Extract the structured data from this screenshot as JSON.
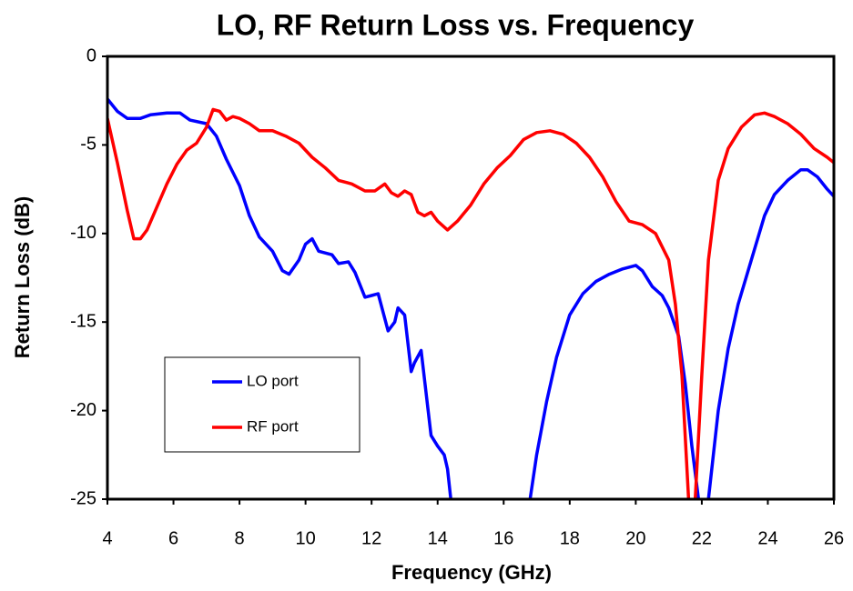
{
  "chart_data": {
    "type": "line",
    "title": "LO, RF Return Loss vs. Frequency",
    "x_label": "Frequency (GHz)",
    "y_label": "Return Loss (dB)",
    "xlim": [
      4,
      26
    ],
    "xticks": [
      4,
      6,
      8,
      10,
      12,
      14,
      16,
      18,
      20,
      22,
      24,
      26
    ],
    "ylim": [
      -25,
      0
    ],
    "yticks": [
      0,
      -5,
      -10,
      -15,
      -20,
      -25
    ],
    "grid": false,
    "legend": "lower-left",
    "series": [
      {
        "name": "LO port",
        "color": "#0000ff",
        "x": [
          4.0,
          4.3,
          4.6,
          5.0,
          5.3,
          5.8,
          6.2,
          6.5,
          7.0,
          7.3,
          7.6,
          8.0,
          8.3,
          8.6,
          9.0,
          9.3,
          9.5,
          9.8,
          10.0,
          10.2,
          10.4,
          10.8,
          11.0,
          11.3,
          11.5,
          11.8,
          12.0,
          12.2,
          12.5,
          12.7,
          12.8,
          13.0,
          13.2,
          13.3,
          13.5,
          13.8,
          14.0,
          14.2,
          14.3,
          14.4,
          15.6,
          16.8,
          17.0,
          17.3,
          17.6,
          18.0,
          18.4,
          18.8,
          19.2,
          19.6,
          20.0,
          20.2,
          20.5,
          20.8,
          21.0,
          21.3,
          21.5,
          21.7,
          21.9,
          22.05,
          22.2,
          22.5,
          22.8,
          23.1,
          23.5,
          23.9,
          24.2,
          24.6,
          25.0,
          25.2,
          25.5,
          25.8,
          26.0
        ],
        "values": [
          -2.4,
          -3.1,
          -3.5,
          -3.5,
          -3.3,
          -3.2,
          -3.2,
          -3.6,
          -3.8,
          -4.5,
          -5.8,
          -7.3,
          -9.0,
          -10.2,
          -11.0,
          -12.1,
          -12.3,
          -11.5,
          -10.6,
          -10.3,
          -11.0,
          -11.2,
          -11.7,
          -11.6,
          -12.2,
          -13.6,
          -13.5,
          -13.4,
          -15.5,
          -15.0,
          -14.2,
          -14.6,
          -17.8,
          -17.3,
          -16.6,
          -21.4,
          -22.0,
          -22.5,
          -23.3,
          -25,
          null,
          -25,
          -22.5,
          -19.5,
          -17.0,
          -14.6,
          -13.4,
          -12.7,
          -12.3,
          -12.0,
          -11.8,
          -12.1,
          -13.0,
          -13.5,
          -14.2,
          -15.8,
          -18.5,
          -22.0,
          -25,
          null,
          -25,
          -20,
          -16.5,
          -14,
          -11.5,
          -9,
          -7.8,
          -7.0,
          -6.4,
          -6.4,
          -6.8,
          -7.5,
          -7.9
        ]
      },
      {
        "name": "RF port",
        "color": "#ff0000",
        "x": [
          4.0,
          4.3,
          4.6,
          4.8,
          5.0,
          5.2,
          5.5,
          5.8,
          6.1,
          6.4,
          6.7,
          7.0,
          7.2,
          7.4,
          7.6,
          7.8,
          8.0,
          8.3,
          8.6,
          9.0,
          9.4,
          9.8,
          10.2,
          10.6,
          11.0,
          11.4,
          11.8,
          12.1,
          12.4,
          12.6,
          12.8,
          13.0,
          13.2,
          13.4,
          13.6,
          13.8,
          14.0,
          14.3,
          14.6,
          15.0,
          15.4,
          15.8,
          16.2,
          16.6,
          17.0,
          17.4,
          17.8,
          18.2,
          18.6,
          19.0,
          19.4,
          19.8,
          20.2,
          20.6,
          21.0,
          21.2,
          21.4,
          21.6,
          21.7,
          21.8,
          22.0,
          22.2,
          22.5,
          22.8,
          23.2,
          23.6,
          23.9,
          24.2,
          24.6,
          25.0,
          25.4,
          25.8,
          26.0
        ],
        "values": [
          -3.5,
          -6,
          -8.7,
          -10.3,
          -10.3,
          -9.8,
          -8.5,
          -7.2,
          -6.1,
          -5.3,
          -4.9,
          -4.0,
          -3.0,
          -3.1,
          -3.6,
          -3.4,
          -3.5,
          -3.8,
          -4.2,
          -4.2,
          -4.5,
          -4.9,
          -5.7,
          -6.3,
          -7.0,
          -7.2,
          -7.6,
          -7.6,
          -7.2,
          -7.7,
          -7.9,
          -7.6,
          -7.8,
          -8.8,
          -9.0,
          -8.8,
          -9.3,
          -9.8,
          -9.3,
          -8.4,
          -7.2,
          -6.3,
          -5.6,
          -4.7,
          -4.3,
          -4.2,
          -4.4,
          -4.9,
          -5.7,
          -6.8,
          -8.2,
          -9.3,
          -9.5,
          -10.0,
          -11.5,
          -14,
          -18,
          -25,
          null,
          -25,
          -18,
          -11.5,
          -7,
          -5.2,
          -4.0,
          -3.3,
          -3.2,
          -3.4,
          -3.8,
          -4.4,
          -5.2,
          -5.7,
          -6.0
        ]
      }
    ]
  }
}
